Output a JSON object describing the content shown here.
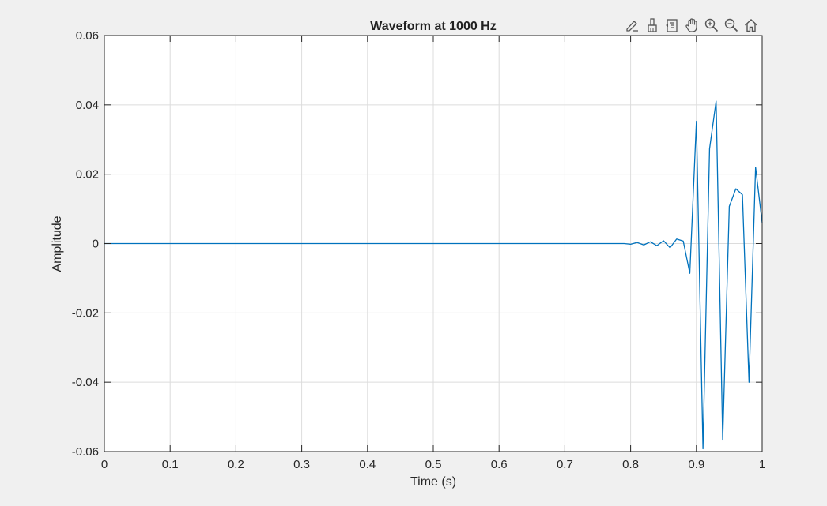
{
  "toolbar": {
    "buttons": [
      {
        "name": "data-tips-button",
        "icon": "pencil-edit-icon"
      },
      {
        "name": "brush-button",
        "icon": "brush-icon"
      },
      {
        "name": "restore-view-button",
        "icon": "restore-view-icon"
      },
      {
        "name": "pan-button",
        "icon": "hand-icon"
      },
      {
        "name": "zoom-in-button",
        "icon": "zoom-in-icon"
      },
      {
        "name": "zoom-out-button",
        "icon": "zoom-out-icon"
      },
      {
        "name": "home-button",
        "icon": "home-icon"
      }
    ]
  },
  "chart_data": {
    "type": "line",
    "title": "Waveform at 1000 Hz",
    "xlabel": "Time (s)",
    "ylabel": "Amplitude",
    "xlim": [
      0,
      1
    ],
    "ylim": [
      -0.06,
      0.06
    ],
    "xticks": [
      0,
      0.1,
      0.2,
      0.3,
      0.4,
      0.5,
      0.6,
      0.7,
      0.8,
      0.9,
      1
    ],
    "xtick_labels": [
      "0",
      "0.1",
      "0.2",
      "0.3",
      "0.4",
      "0.5",
      "0.6",
      "0.7",
      "0.8",
      "0.9",
      "1"
    ],
    "yticks": [
      -0.06,
      -0.04,
      -0.02,
      0,
      0.02,
      0.04,
      0.06
    ],
    "ytick_labels": [
      "-0.06",
      "-0.04",
      "-0.02",
      "0",
      "0.02",
      "0.04",
      "0.06"
    ],
    "grid": true,
    "series": [
      {
        "color": "#0072bd",
        "x": [
          0,
          0.01,
          0.02,
          0.03,
          0.04,
          0.05,
          0.06,
          0.07,
          0.08,
          0.09,
          0.1,
          0.11,
          0.12,
          0.13,
          0.14,
          0.15,
          0.16,
          0.17,
          0.18,
          0.19,
          0.2,
          0.21,
          0.22,
          0.23,
          0.24,
          0.25,
          0.26,
          0.27,
          0.28,
          0.29,
          0.3,
          0.31,
          0.32,
          0.33,
          0.34,
          0.35,
          0.36,
          0.37,
          0.38,
          0.39,
          0.4,
          0.41,
          0.42,
          0.43,
          0.44,
          0.45,
          0.46,
          0.47,
          0.48,
          0.49,
          0.5,
          0.51,
          0.52,
          0.53,
          0.54,
          0.55,
          0.56,
          0.57,
          0.58,
          0.59,
          0.6,
          0.61,
          0.62,
          0.63,
          0.64,
          0.65,
          0.66,
          0.67,
          0.68,
          0.69,
          0.7,
          0.71,
          0.72,
          0.73,
          0.74,
          0.75,
          0.76,
          0.77,
          0.78,
          0.79,
          0.8,
          0.81,
          0.82,
          0.83,
          0.84,
          0.85,
          0.86,
          0.87,
          0.88,
          0.89,
          0.9,
          0.91,
          0.92,
          0.93,
          0.94,
          0.95,
          0.96,
          0.97,
          0.98,
          0.99,
          1.0
        ],
        "y": [
          0,
          0,
          0,
          0,
          0,
          0,
          0,
          0,
          0,
          0,
          0,
          0,
          0,
          0,
          0,
          0,
          0,
          0,
          0,
          0,
          0,
          0,
          0,
          0,
          0,
          0,
          0,
          0,
          0,
          0,
          0,
          0,
          0,
          0,
          0,
          0,
          0,
          0,
          0,
          0,
          0,
          0,
          0,
          0,
          0,
          0,
          0,
          0,
          0,
          0,
          0,
          0,
          0,
          0,
          0,
          0,
          0,
          0,
          0,
          0,
          0,
          0,
          0,
          0,
          0,
          0,
          0,
          0,
          0,
          0,
          0,
          0,
          0,
          0,
          0,
          0,
          0,
          0,
          0,
          0,
          -0.0002,
          0.0003,
          -0.0004,
          0.0005,
          -0.0006,
          0.0008,
          -0.0012,
          0.0013,
          0.0007,
          -0.0086,
          0.0353,
          -0.0592,
          0.0273,
          0.0411,
          -0.0567,
          0.0107,
          0.0158,
          0.0141,
          -0.04,
          0.022,
          0.006
        ]
      }
    ]
  }
}
